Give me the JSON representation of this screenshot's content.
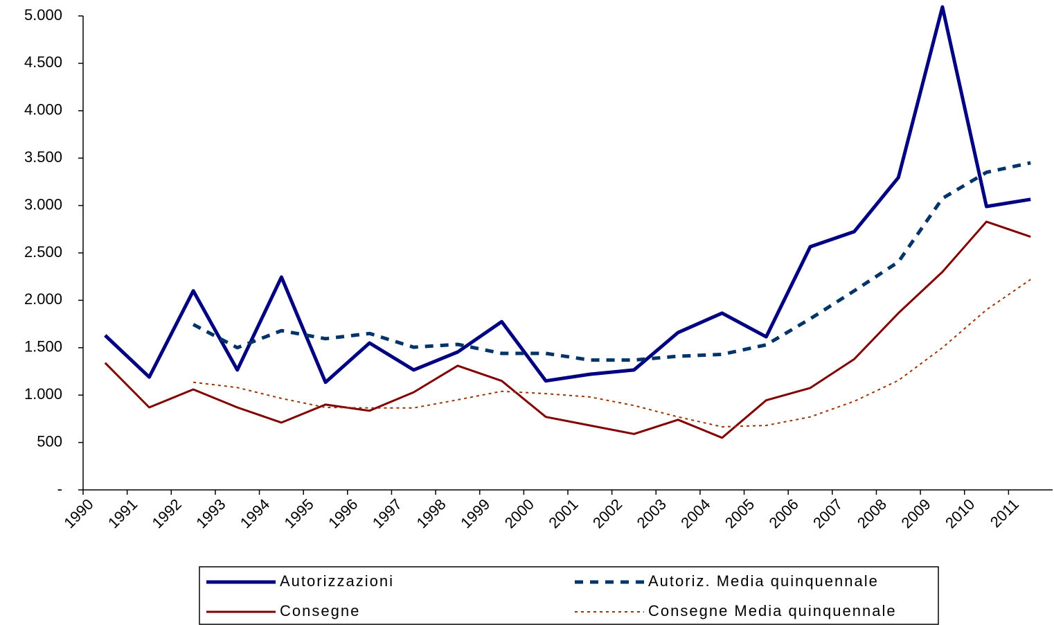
{
  "chart_data": {
    "type": "line",
    "categories": [
      "1990",
      "1991",
      "1992",
      "1993",
      "1994",
      "1995",
      "1996",
      "1997",
      "1998",
      "1999",
      "2000",
      "2001",
      "2002",
      "2003",
      "2004",
      "2005",
      "2006",
      "2007",
      "2008",
      "2009",
      "2010",
      "2011"
    ],
    "ylim": [
      0,
      5000
    ],
    "yticks": [
      {
        "value": 0,
        "label": "-"
      },
      500,
      {
        "value": 1000,
        "label": "1.000"
      },
      {
        "value": 1500,
        "label": "1.500"
      },
      {
        "value": 2000,
        "label": "2.000"
      },
      {
        "value": 2500,
        "label": "2.500"
      },
      {
        "value": 3000,
        "label": "3.000"
      },
      {
        "value": 3500,
        "label": "3.500"
      },
      {
        "value": 4000,
        "label": "4.000"
      },
      {
        "value": 4500,
        "label": "4.500"
      },
      {
        "value": 5000,
        "label": "5.000"
      }
    ],
    "grid": false,
    "series": [
      {
        "name": "Autorizzazioni",
        "color": "#000080",
        "style": "solid",
        "values": [
          1630,
          1190,
          2100,
          1265,
          2245,
          1135,
          1550,
          1265,
          1455,
          1775,
          1150,
          1220,
          1265,
          1660,
          1865,
          1615,
          2565,
          2725,
          3295,
          5095,
          2990,
          3065
        ]
      },
      {
        "name": "Autoriz. Media quinquennale",
        "color": "#003366",
        "style": "dashed",
        "values": [
          null,
          null,
          1745,
          1500,
          1680,
          1595,
          1650,
          1505,
          1535,
          1440,
          1440,
          1370,
          1370,
          1410,
          1430,
          1530,
          1805,
          2100,
          2405,
          3075,
          3350,
          3450
        ]
      },
      {
        "name": "Consegne",
        "color": "#800000",
        "style": "solid",
        "values": [
          1340,
          870,
          1060,
          870,
          710,
          900,
          835,
          1030,
          1310,
          1150,
          770,
          680,
          590,
          740,
          550,
          945,
          1075,
          1380,
          1865,
          2300,
          2830,
          2670
        ]
      },
      {
        "name": "Consegne Media quinquennale",
        "color": "#993300",
        "style": "dotted",
        "values": [
          null,
          null,
          1135,
          1080,
          965,
          870,
          865,
          865,
          950,
          1040,
          1015,
          980,
          890,
          770,
          665,
          680,
          770,
          935,
          1155,
          1500,
          1900,
          2220
        ]
      }
    ]
  }
}
